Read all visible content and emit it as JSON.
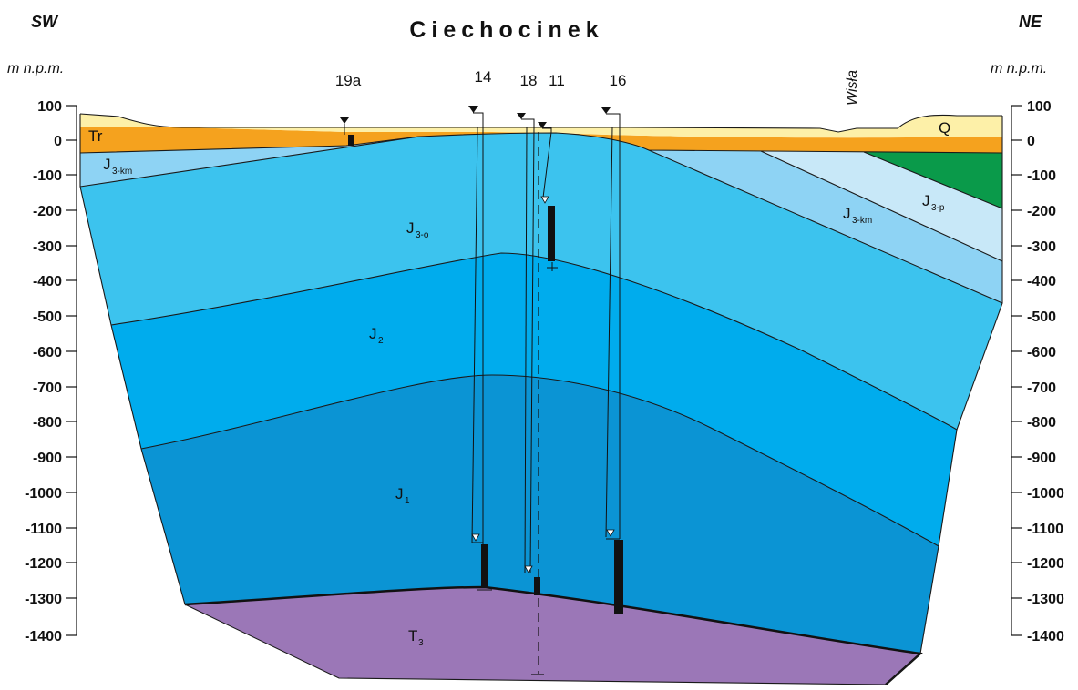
{
  "header": {
    "left_direction": "SW",
    "right_direction": "NE",
    "title": "Ciechocinek",
    "left_unit": "m n.p.m.",
    "right_unit": "m n.p.m.",
    "river": "Wisła"
  },
  "depth_axis": {
    "ticks": [
      "100",
      "0",
      "-100",
      "-200",
      "-300",
      "-400",
      "-500",
      "-600",
      "-700",
      "-800",
      "-900",
      "-1000",
      "-1100",
      "-1200",
      "-1300",
      "-1400"
    ]
  },
  "wells": [
    {
      "label": "19a"
    },
    {
      "label": "14"
    },
    {
      "label": "18"
    },
    {
      "label": "11"
    },
    {
      "label": "16"
    }
  ],
  "units": {
    "Q": "Q",
    "Tr": "Tr",
    "J3km_left": {
      "main": "J",
      "sub": "3-km"
    },
    "J3o": {
      "main": "J",
      "sub": "3-o"
    },
    "J2": {
      "main": "J",
      "sub": "2"
    },
    "J1": {
      "main": "J",
      "sub": "1"
    },
    "T3": {
      "main": "T",
      "sub": "3"
    },
    "J3km_right": {
      "main": "J",
      "sub": "3-km"
    },
    "J3p": {
      "main": "J",
      "sub": "3-p"
    }
  },
  "colors": {
    "Q": "#fdf0a8",
    "Tr": "#f5a21e",
    "J3p": "#c8e8f8",
    "J3km": "#8ed3f4",
    "J3o": "#3cc3ee",
    "J2": "#00aced",
    "J1": "#0b94d4",
    "T3": "#9b77b7",
    "green_block": "#0a9a4a"
  }
}
